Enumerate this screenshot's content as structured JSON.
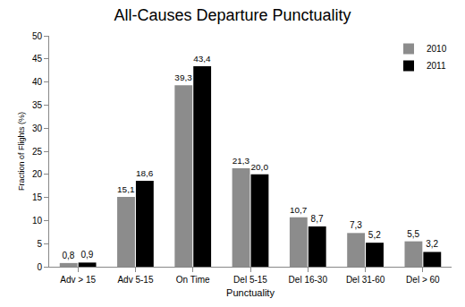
{
  "chart_data": {
    "type": "bar",
    "title": "All-Causes Departure Punctuality",
    "x_label": "Punctuality",
    "y_label": "Fraction of Flights (%)",
    "categories": [
      "Adv > 15",
      "Adv 5-15",
      "On Time",
      "Del 5-15",
      "Del 16-30",
      "Del 31-60",
      "Del > 60"
    ],
    "series": [
      {
        "name": "2010",
        "color": "#8c8c8c",
        "values": [
          0.8,
          15.1,
          39.3,
          21.3,
          10.7,
          7.3,
          5.5
        ],
        "value_labels": [
          "0,8",
          "15,1",
          "39,3",
          "21,3",
          "10,7",
          "7,3",
          "5,5"
        ]
      },
      {
        "name": "2011",
        "color": "#000000",
        "values": [
          0.9,
          18.6,
          43.4,
          20.0,
          8.7,
          5.2,
          3.2
        ],
        "value_labels": [
          "0,9",
          "18,6",
          "43,4",
          "20,0",
          "8,7",
          "5,2",
          "3,2"
        ]
      }
    ],
    "ylim": [
      0,
      50
    ],
    "yticks": [
      0,
      5,
      10,
      15,
      20,
      25,
      30,
      35,
      40,
      45,
      50
    ],
    "grid": false,
    "legend": "upper right",
    "data_labels": true
  }
}
